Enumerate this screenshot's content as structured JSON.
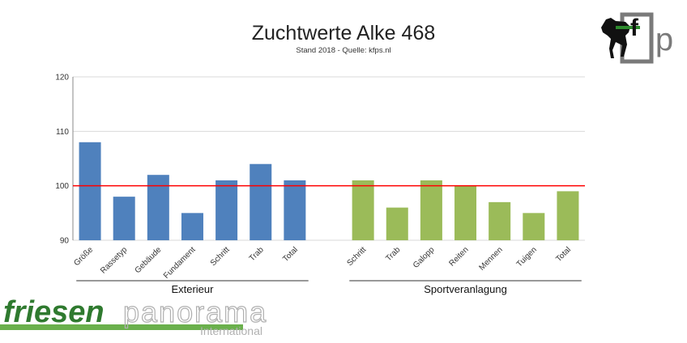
{
  "chart_data": {
    "type": "bar",
    "title": "Zuchtwerte Alke 468",
    "subtitle": "Stand 2018 - Quelle: kfps.nl",
    "ylim": [
      90,
      120
    ],
    "yticks": [
      90,
      100,
      110,
      120
    ],
    "reference_line": 100,
    "grid": true,
    "groups": [
      {
        "name": "Exterieur",
        "color": "#4f81bd",
        "categories": [
          "Größe",
          "Rassetyp",
          "Gebäude",
          "Fundament",
          "Schritt",
          "Trab",
          "Total"
        ],
        "values": [
          108,
          98,
          102,
          95,
          101,
          104,
          101
        ]
      },
      {
        "name": "Sportveranlagung",
        "color": "#9bbb59",
        "categories": [
          "Schritt",
          "Trab",
          "Galopp",
          "Reiten",
          "Mennen",
          "Tuigen",
          "Total"
        ],
        "values": [
          101,
          96,
          101,
          100,
          97,
          95,
          99
        ]
      }
    ],
    "colors": {
      "reference_line": "#ff0000",
      "grid": "#d9d9d9",
      "axis": "#888888"
    }
  },
  "logo": {
    "initials": [
      "f",
      "p"
    ],
    "colors": {
      "frame": "#7a7a7a",
      "horse": "#111111",
      "green": "#2e8b2e"
    }
  },
  "watermark": {
    "bold": "friesen",
    "light": "panorama",
    "sub": "International",
    "colors": {
      "bold": "#2f7a2f",
      "light": "#b0b0b0",
      "bar": "#6ab04c"
    }
  }
}
